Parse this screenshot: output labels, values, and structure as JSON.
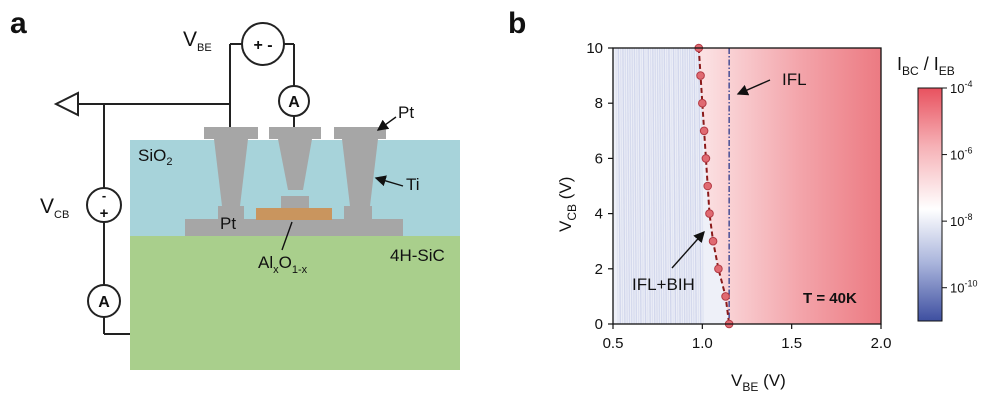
{
  "panel_a": {
    "panel_label": "a",
    "vbe": {
      "main": "V",
      "sub": "BE"
    },
    "vcb": {
      "main": "V",
      "sub": "CB"
    },
    "source_top_signs": "+ -",
    "source_left_plus": "+",
    "source_left_minus": "-",
    "ammeter_label": "A",
    "pt_label": "Pt",
    "pt_bottom_label": "Pt",
    "sio2": {
      "main": "SiO",
      "sub": "2"
    },
    "ti_label": "Ti",
    "alox": {
      "p1": "Al",
      "s1": "x",
      "p2": "O",
      "s2": "1-x"
    },
    "substrate_label": "4H-SiC",
    "colors": {
      "sio2": "#a7d3da",
      "sic": "#a9cf8c",
      "metal": "#a6a6a6",
      "alox": "#c9955e"
    }
  },
  "panel_b": {
    "panel_label": "b",
    "annotation_ifl": "IFL",
    "annotation_iflbih": "IFL+BIH",
    "temperature_label": "T = 40K",
    "colorbar_title": {
      "p1": "I",
      "s1": "BC",
      "p2": " / I",
      "s2": "EB"
    },
    "colorbar_ticks": [
      {
        "base": "10",
        "exp": "-4"
      },
      {
        "base": "10",
        "exp": "-6"
      },
      {
        "base": "10",
        "exp": "-8"
      },
      {
        "base": "10",
        "exp": "-10"
      }
    ],
    "x_label": {
      "main": "V",
      "sub": "BE",
      "unit": " (V)"
    },
    "y_label": {
      "main": "V",
      "sub": "CB",
      "unit": " (V)"
    }
  },
  "chart_data": {
    "type": "heatmap",
    "x_ticks": [
      "0.5",
      "1.0",
      "1.5",
      "2.0"
    ],
    "y_ticks": [
      "0",
      "2",
      "4",
      "6",
      "8",
      "10"
    ],
    "xlim": [
      0.5,
      2.0
    ],
    "ylim": [
      0,
      10
    ],
    "colorbar_log_range": [
      -11,
      -4
    ],
    "ifl_line_x": 1.15,
    "threshold_points": [
      {
        "x": 0.98,
        "y": 10.0
      },
      {
        "x": 0.99,
        "y": 9.0
      },
      {
        "x": 1.0,
        "y": 8.0
      },
      {
        "x": 1.01,
        "y": 7.0
      },
      {
        "x": 1.02,
        "y": 6.0
      },
      {
        "x": 1.03,
        "y": 5.0
      },
      {
        "x": 1.04,
        "y": 4.0
      },
      {
        "x": 1.06,
        "y": 3.0
      },
      {
        "x": 1.09,
        "y": 2.0
      },
      {
        "x": 1.13,
        "y": 1.0
      },
      {
        "x": 1.15,
        "y": 0.0
      }
    ],
    "colors": {
      "low": "#3e4fa0",
      "mid": "#ffffff",
      "high": "#e8525f",
      "fit": "#8b1a1a",
      "ifl_line": "#2b3a8c"
    }
  }
}
